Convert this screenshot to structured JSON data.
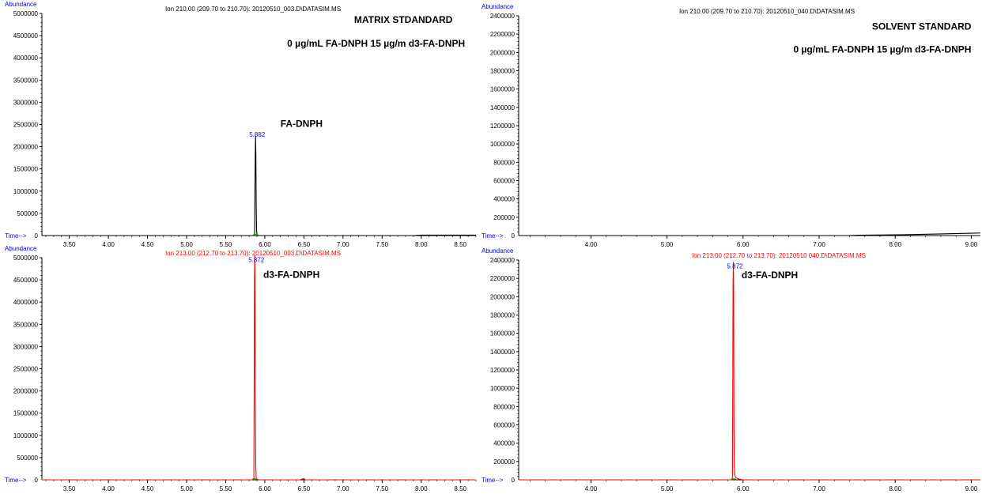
{
  "chart_data": [
    {
      "type": "line",
      "panel": "top-left",
      "header": "Ion 210.00 (209.70 to 210.70): 20120510_003.D\\DATASIM.MS",
      "ylabel": "Abundance",
      "xlabel": "Time-->",
      "ylim": [
        0,
        5000000
      ],
      "xlim": [
        3.15,
        8.7
      ],
      "yticks": [
        "500000",
        "1000000",
        "1500000",
        "2000000",
        "2500000",
        "3000000",
        "3500000",
        "4000000",
        "4500000",
        "5000000"
      ],
      "xticks": [
        "3.50",
        "4.00",
        "4.50",
        "5.00",
        "5.50",
        "6.00",
        "6.50",
        "7.00",
        "7.50",
        "8.00",
        "8.50"
      ],
      "y0_label": "0",
      "color": "#000000",
      "header_color": "#000000",
      "annotations": [
        {
          "text": "MATRIX STDANDARD",
          "x": 8.4,
          "y": 4790000,
          "anchor": "end"
        },
        {
          "text": "0 µg/mL FA-DNPH 15  µg/m d3-FA-DNPH",
          "x": 8.56,
          "y": 4250000,
          "anchor": "end"
        },
        {
          "text": "FA-DNPH",
          "x": 6.2,
          "y": 2450000,
          "anchor": "start"
        }
      ],
      "peak_label": {
        "text": "5.882",
        "x": 5.882,
        "y": 2220000
      },
      "series": [
        {
          "x": [
            3.15,
            5.84,
            5.86,
            5.87,
            5.875,
            5.878,
            5.882,
            5.886,
            5.89,
            5.895,
            5.9,
            5.92,
            5.95,
            6.1,
            6.12,
            7.9,
            8.0,
            8.7
          ],
          "values": [
            0,
            0,
            0,
            30000,
            1300000,
            1800000,
            2250000,
            1800000,
            700000,
            120000,
            20000,
            0,
            0,
            0,
            0,
            0,
            10000,
            10000
          ]
        }
      ]
    },
    {
      "type": "line",
      "panel": "top-right",
      "header": "Ion 210.00 (209.70 to 210.70): 20120510_040.D\\DATASIM.MS",
      "ylabel": "Abundance",
      "xlabel": "Time-->",
      "ylim": [
        0,
        2400000
      ],
      "xlim": [
        3.05,
        9.12
      ],
      "yticks": [
        "200000",
        "400000",
        "600000",
        "800000",
        "1000000",
        "1200000",
        "1400000",
        "1600000",
        "1800000",
        "2000000",
        "2200000",
        "2400000"
      ],
      "xticks": [
        "4.00",
        "5.00",
        "6.00",
        "7.00",
        "8.00",
        "9.00"
      ],
      "y0_label": "0",
      "color": "#000000",
      "header_color": "#000000",
      "annotations": [
        {
          "text": "SOLVENT STANDARD",
          "x": 9.0,
          "y": 2250000,
          "anchor": "end"
        },
        {
          "text": "0 µg/mL FA-DNPH 15  µg/m d3-FA-DNPH",
          "x": 9.0,
          "y": 2000000,
          "anchor": "end"
        }
      ],
      "series": [
        {
          "x": [
            3.05,
            7.4,
            7.5,
            8.0,
            8.3,
            8.6,
            9.0,
            9.12
          ],
          "values": [
            0,
            0,
            4000,
            8000,
            12000,
            18000,
            25000,
            28000
          ]
        }
      ]
    },
    {
      "type": "line",
      "panel": "bottom-left",
      "header": "Ion 213.00 (212.70 to 213.70): 20120510_003.D\\DATASIM.MS",
      "ylabel": "Abundance",
      "xlabel": "Time-->",
      "ylim": [
        0,
        5000000
      ],
      "xlim": [
        3.15,
        8.7
      ],
      "yticks": [
        "500000",
        "1000000",
        "1500000",
        "2000000",
        "2500000",
        "3000000",
        "3500000",
        "4000000",
        "4500000",
        "5000000"
      ],
      "xticks": [
        "3.50",
        "4.00",
        "4.50",
        "5.00",
        "5.50",
        "6.00",
        "6.50",
        "7.00",
        "7.50",
        "8.00",
        "8.50"
      ],
      "y0_label": "0",
      "color": "#ff0000",
      "header_color": "#ff0000",
      "annotations": [
        {
          "text": "d3-FA-DNPH",
          "x": 5.98,
          "y": 4550000,
          "anchor": "start"
        }
      ],
      "peak_label": {
        "text": "5.872",
        "x": 5.872,
        "y": 4900000
      },
      "series": [
        {
          "x": [
            3.15,
            5.84,
            5.86,
            5.865,
            5.868,
            5.872,
            5.876,
            5.88,
            5.885,
            5.89,
            5.9,
            5.93,
            6.45,
            6.48,
            6.5,
            6.52,
            8.7
          ],
          "values": [
            0,
            0,
            20000,
            2500000,
            4600000,
            5050000,
            3900000,
            1500000,
            300000,
            50000,
            10000,
            0,
            0,
            20000,
            30000,
            0,
            0
          ]
        }
      ]
    },
    {
      "type": "line",
      "panel": "bottom-right",
      "header": "Ion 213.00 (212.70 to 213.70): 20120510  040.D\\DATASIM.MS",
      "ylabel": "Abundance",
      "xlabel": "Time-->",
      "ylim": [
        0,
        2400000
      ],
      "xlim": [
        3.05,
        9.12
      ],
      "yticks": [
        "200000",
        "400000",
        "600000",
        "800000",
        "1000000",
        "1200000",
        "1400000",
        "1600000",
        "1800000",
        "2000000",
        "2200000",
        "2400000"
      ],
      "xticks": [
        "4.00",
        "5.00",
        "6.00",
        "7.00",
        "8.00",
        "9.00"
      ],
      "y0_label": "0",
      "color": "#ff0000",
      "header_color": "#ff0000",
      "annotations": [
        {
          "text": "d3-FA-DNPH",
          "x": 5.98,
          "y": 2200000,
          "anchor": "start"
        }
      ],
      "peak_label": {
        "text": "5.872",
        "x": 5.872,
        "y": 2310000
      },
      "series": [
        {
          "x": [
            3.05,
            5.85,
            5.86,
            5.865,
            5.868,
            5.872,
            5.876,
            5.88,
            5.885,
            5.89,
            5.9,
            5.92,
            5.95,
            6.0,
            9.12
          ],
          "values": [
            0,
            0,
            20000,
            1250000,
            2100000,
            2380000,
            2150000,
            600000,
            150000,
            60000,
            30000,
            15000,
            8000,
            0,
            0
          ]
        }
      ]
    }
  ]
}
